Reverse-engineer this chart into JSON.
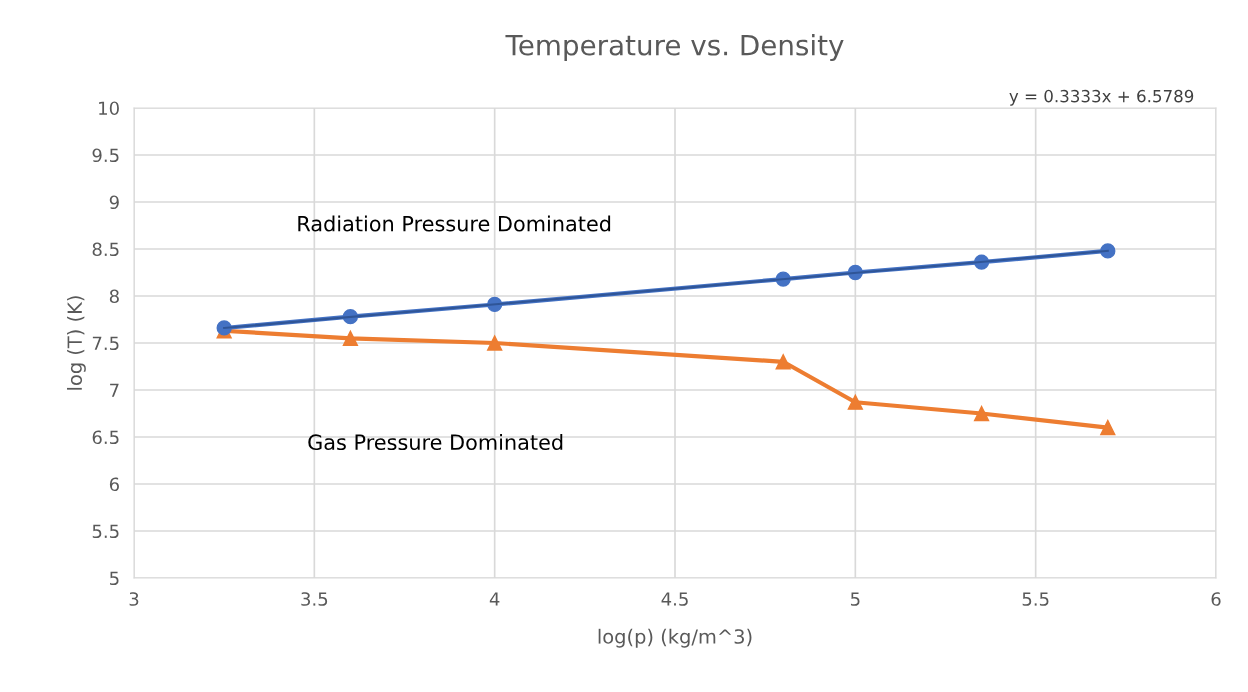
{
  "chart_data": {
    "type": "line",
    "title": "Temperature vs. Density",
    "xlabel": "log(p) (kg/m^3)",
    "ylabel": "log (T) (K)",
    "x": [
      3.25,
      3.6,
      4.0,
      4.8,
      5.0,
      5.35,
      5.7
    ],
    "series": [
      {
        "color": "#4472c4",
        "marker": "circle",
        "values": [
          7.66,
          7.78,
          7.91,
          8.18,
          8.25,
          8.36,
          8.48
        ]
      },
      {
        "color": "#ed7d31",
        "marker": "triangle",
        "values": [
          7.63,
          7.55,
          7.5,
          7.3,
          6.87,
          6.75,
          6.6
        ]
      },
      {
        "type": "line",
        "color": "#2f5597",
        "marker": "none",
        "x": [
          3.25,
          5.7
        ],
        "values": [
          7.66,
          8.48
        ]
      }
    ],
    "xlim": [
      3,
      6
    ],
    "xticks": [
      3,
      3.5,
      4,
      4.5,
      5,
      5.5,
      6
    ],
    "ylim": [
      5,
      10
    ],
    "yticks": [
      5,
      5.5,
      6,
      6.5,
      7,
      7.5,
      8,
      8.5,
      9,
      9.5,
      10
    ],
    "grid": true,
    "annotations": [
      "y = 0.3333x + 6.5789",
      "Radiation Pressure Dominated",
      "Gas Pressure Dominated"
    ]
  }
}
